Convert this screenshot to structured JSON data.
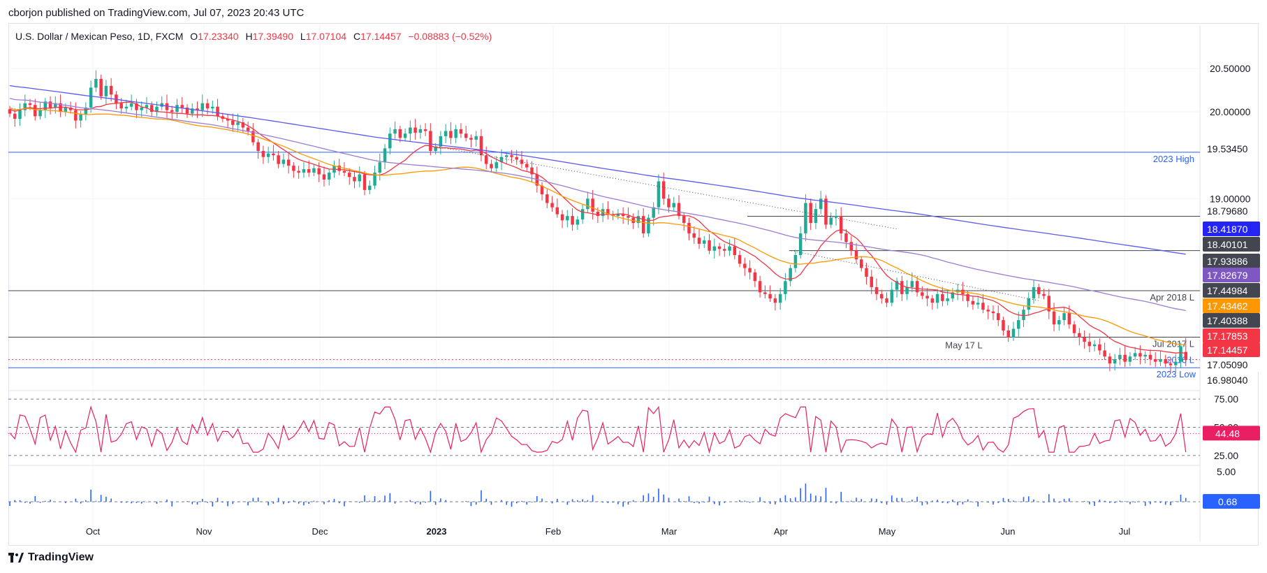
{
  "publisher_line": "cborjon published on TradingView.com, Jul 07, 2023 20:43 UTC",
  "legend": {
    "symbol": "U.S. Dollar / Mexican Peso, 1D, FXCM",
    "open_label": "O",
    "open": "17.23340",
    "high_label": "H",
    "high": "17.39490",
    "low_label": "L",
    "low": "17.07104",
    "close_label": "C",
    "close": "17.14457",
    "change": "−0.08883 (−0.52%)"
  },
  "footer": {
    "brand": "TradingView"
  },
  "colors": {
    "up": "#22ab94",
    "down": "#f23645",
    "ema20": "#f23645",
    "ema50": "#ff9800",
    "ema100": "#9c7cd4",
    "ema200": "#5b5bf0",
    "rsi": "#e91e63",
    "volume": "#2962ff",
    "grid": "#f0f3fa",
    "level": "#434651",
    "support": "#2962ff"
  },
  "chart_data": {
    "type": "candlestick",
    "pair": "USD/MXN",
    "timeframe": "1D",
    "x_tick_labels": [
      "Oct",
      "Nov",
      "Dec",
      "2023",
      "Feb",
      "Mar",
      "Apr",
      "May",
      "Jun",
      "Jul"
    ],
    "y_axis_ticks": [
      "20.50000",
      "20.00000",
      "19.00000"
    ],
    "ylim": [
      16.9,
      21.0
    ],
    "last_ohlc": {
      "open": 17.2334,
      "high": 17.3949,
      "low": 17.07104,
      "close": 17.14457
    },
    "closes": [
      19.98,
      19.92,
      20.02,
      20.1,
      20.08,
      19.95,
      20.02,
      20.12,
      20.05,
      20.1,
      20.0,
      20.05,
      20.02,
      19.9,
      19.97,
      20.05,
      20.28,
      20.38,
      20.18,
      20.3,
      20.2,
      20.1,
      20.04,
      20.06,
      20.1,
      20.02,
      20.05,
      20.08,
      20.0,
      20.06,
      20.1,
      20.02,
      20.0,
      20.08,
      20.05,
      19.98,
      20.04,
      20.02,
      20.1,
      20.04,
      20.06,
      19.95,
      19.92,
      19.9,
      19.85,
      19.88,
      19.82,
      19.78,
      19.65,
      19.55,
      19.48,
      19.52,
      19.5,
      19.4,
      19.45,
      19.38,
      19.32,
      19.3,
      19.34,
      19.3,
      19.35,
      19.28,
      19.22,
      19.3,
      19.38,
      19.32,
      19.3,
      19.25,
      19.2,
      19.28,
      19.1,
      19.15,
      19.3,
      19.42,
      19.58,
      19.75,
      19.8,
      19.7,
      19.75,
      19.82,
      19.76,
      19.8,
      19.78,
      19.55,
      19.6,
      19.72,
      19.78,
      19.7,
      19.8,
      19.75,
      19.7,
      19.68,
      19.72,
      19.5,
      19.4,
      19.35,
      19.42,
      19.48,
      19.5,
      19.48,
      19.45,
      19.4,
      19.36,
      19.28,
      19.15,
      19.05,
      18.95,
      18.9,
      18.82,
      18.75,
      18.8,
      18.7,
      18.76,
      18.88,
      19.0,
      18.85,
      18.8,
      18.88,
      18.82,
      18.8,
      18.82,
      18.8,
      18.78,
      18.72,
      18.8,
      18.6,
      18.78,
      18.9,
      19.2,
      19.0,
      18.9,
      18.95,
      18.8,
      18.72,
      18.6,
      18.55,
      18.48,
      18.52,
      18.4,
      18.45,
      18.42,
      18.4,
      18.45,
      18.35,
      18.25,
      18.2,
      18.15,
      18.05,
      17.92,
      17.9,
      17.85,
      17.8,
      17.9,
      18.05,
      18.2,
      18.35,
      18.6,
      18.95,
      18.72,
      18.88,
      19.0,
      18.7,
      18.78,
      18.8,
      18.6,
      18.5,
      18.4,
      18.3,
      18.2,
      18.1,
      17.98,
      17.9,
      17.85,
      17.8,
      17.95,
      18.05,
      17.9,
      17.98,
      18.05,
      17.92,
      17.88,
      17.85,
      17.8,
      17.9,
      17.82,
      17.85,
      17.92,
      17.95,
      17.9,
      17.82,
      17.78,
      17.8,
      17.72,
      17.7,
      17.68,
      17.6,
      17.48,
      17.4,
      17.5,
      17.6,
      17.72,
      17.85,
      17.98,
      17.9,
      17.88,
      17.7,
      17.55,
      17.6,
      17.68,
      17.55,
      17.45,
      17.4,
      17.35,
      17.3,
      17.32,
      17.25,
      17.18,
      17.1,
      17.15,
      17.2,
      17.12,
      17.18,
      17.22,
      17.18,
      17.2,
      17.15,
      17.12,
      17.15,
      17.1,
      17.08,
      17.12,
      17.3,
      17.14
    ],
    "series_ema": [
      {
        "key": "ema20",
        "start": 19.95,
        "end": 17.1785
      },
      {
        "key": "ema50",
        "start": 20.1,
        "end": 17.43462
      },
      {
        "key": "ema100",
        "start": 20.2,
        "end": 17.82679
      },
      {
        "key": "ema200",
        "start": 20.32,
        "end": 18.4187
      }
    ],
    "levels": [
      {
        "value": 19.5345,
        "label": "2023 High"
      },
      {
        "value": 18.7968,
        "label": ""
      },
      {
        "value": 18.40101,
        "label": ""
      },
      {
        "value": 17.93886,
        "label": "Apr 2018 L"
      },
      {
        "value": 17.40388,
        "label": "Jul 2017 L"
      },
      {
        "value": 17.14457,
        "label": "2016 L"
      },
      {
        "value": 17.0509,
        "label": ""
      }
    ],
    "annotations": [
      "May 17 L",
      "2023 Low"
    ],
    "price_tags": [
      {
        "text": "19.53450",
        "style": "plain"
      },
      {
        "text": "18.79680",
        "style": "plain"
      },
      {
        "text": "18.41870",
        "style": "blue"
      },
      {
        "text": "18.40101",
        "style": "dark"
      },
      {
        "text": "17.93886",
        "style": "dark"
      },
      {
        "text": "17.82679",
        "style": "purple"
      },
      {
        "text": "17.44984",
        "style": "dark"
      },
      {
        "text": "17.43462",
        "style": "orange"
      },
      {
        "text": "17.40388",
        "style": "dark"
      },
      {
        "text": "17.17853",
        "style": "red"
      },
      {
        "text": "17.14457",
        "style": "red"
      },
      {
        "text": "17.05090",
        "style": "light"
      },
      {
        "text": "16.98040",
        "style": "plain"
      }
    ],
    "rsi": {
      "ticks": [
        "75.00",
        "50.00",
        "25.00"
      ],
      "last": "44.48",
      "ylim": [
        20,
        80
      ]
    },
    "volume_osc": {
      "ticks": [
        "5.00"
      ],
      "last": "0.68"
    }
  }
}
